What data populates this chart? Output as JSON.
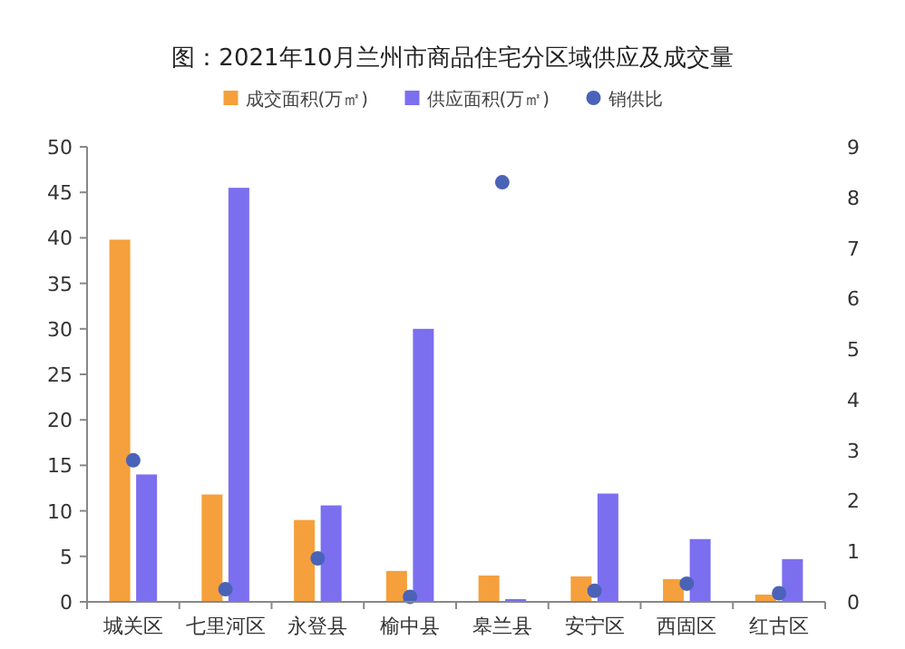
{
  "chart_data": {
    "type": "bar",
    "title": "图：2021年10月兰州市商品住宅分区域供应及成交量",
    "categories": [
      "城关区",
      "七里河区",
      "永登县",
      "榆中县",
      "皋兰县",
      "安宁区",
      "西固区",
      "红古区"
    ],
    "series": [
      {
        "name": "成交面积(万㎡)",
        "color": "#f5a03c",
        "values": [
          39.8,
          11.8,
          9,
          3.4,
          2.9,
          2.8,
          2.5,
          0.8
        ]
      },
      {
        "name": "供应面积(万㎡)",
        "color": "#7b6ff0",
        "values": [
          14,
          45.5,
          10.6,
          30,
          0.3,
          11.9,
          6.9,
          4.7
        ]
      },
      {
        "name": "销供比",
        "type": "scatter",
        "axis": "y2",
        "color": "#4a63b8",
        "marker": "circle",
        "values": [
          2.8,
          0.25,
          0.86,
          0.1,
          8.3,
          0.22,
          0.36,
          0.17
        ]
      }
    ],
    "ylim": [
      0,
      50
    ],
    "yticks": [
      0,
      5,
      10,
      15,
      20,
      25,
      30,
      35,
      40,
      45,
      50
    ],
    "y2lim": [
      0,
      9
    ],
    "y2ticks": [
      0,
      1,
      2,
      3,
      4,
      5,
      6,
      7,
      8,
      9
    ],
    "legend": "top",
    "grid": false
  }
}
